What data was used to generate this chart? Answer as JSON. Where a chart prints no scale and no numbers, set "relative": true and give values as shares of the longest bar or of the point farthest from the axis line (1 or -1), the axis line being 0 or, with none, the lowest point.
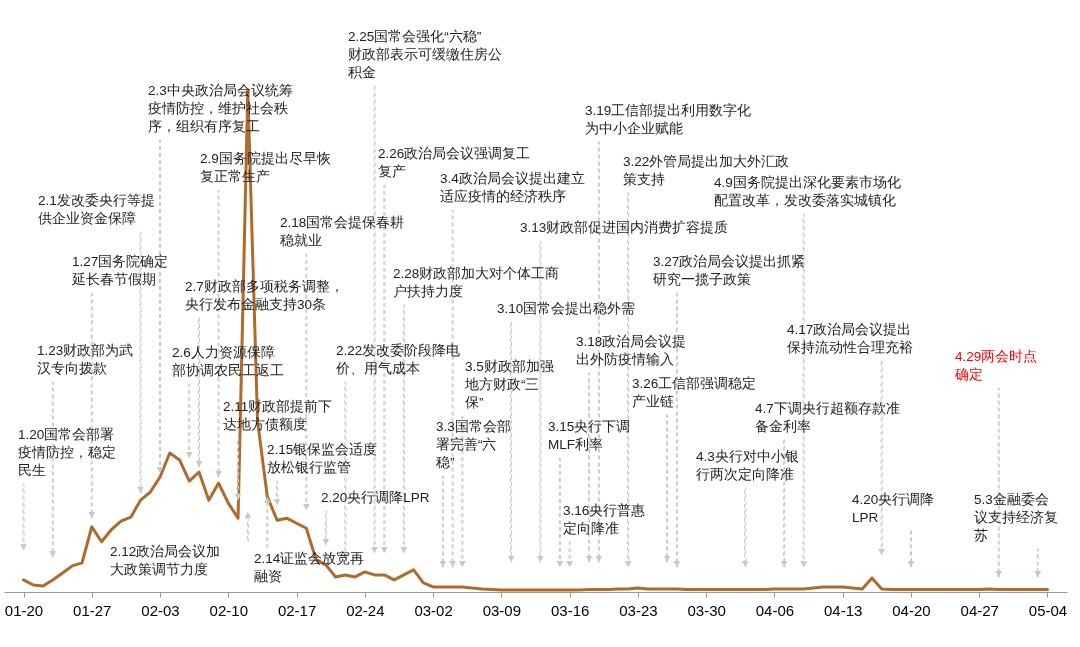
{
  "chart_data": {
    "type": "line",
    "relative": true,
    "color": "#b06a2c",
    "x": [
      "--01-20",
      "--01-21",
      "--01-22",
      "--01-23",
      "--01-24",
      "--01-25",
      "--01-26",
      "--01-27",
      "--01-28",
      "--01-29",
      "--01-30",
      "--01-31",
      "--02-01",
      "--02-02",
      "--02-03",
      "--02-04",
      "--02-05",
      "--02-06",
      "--02-07",
      "--02-08",
      "--02-09",
      "--02-10",
      "--02-11",
      "--02-12",
      "--02-13",
      "--02-14",
      "--02-15",
      "--02-16",
      "--02-17",
      "--02-18",
      "--02-19",
      "--02-20",
      "--02-21",
      "--02-22",
      "--02-23",
      "--02-24",
      "--02-25",
      "--02-26",
      "--02-27",
      "--02-28",
      "--02-29",
      "--03-01",
      "--03-02",
      "--03-03",
      "--03-04",
      "--03-05",
      "--03-06",
      "--03-07",
      "--03-08",
      "--03-09",
      "--03-10",
      "--03-11",
      "--03-12",
      "--03-13",
      "--03-14",
      "--03-15",
      "--03-16",
      "--03-17",
      "--03-18",
      "--03-19",
      "--03-20",
      "--03-21",
      "--03-22",
      "--03-23",
      "--03-24",
      "--03-25",
      "--03-26",
      "--03-27",
      "--03-28",
      "--03-29",
      "--03-30",
      "--03-31",
      "--04-01",
      "--04-02",
      "--04-03",
      "--04-04",
      "--04-05",
      "--04-06",
      "--04-07",
      "--04-08",
      "--04-09",
      "--04-10",
      "--04-11",
      "--04-12",
      "--04-13",
      "--04-14",
      "--04-15",
      "--04-16",
      "--04-17",
      "--04-18",
      "--04-19",
      "--04-20",
      "--04-21",
      "--04-22",
      "--04-23",
      "--04-24",
      "--04-25",
      "--04-26",
      "--04-27",
      "--04-28",
      "--04-29",
      "--04-30",
      "--05-01",
      "--05-02",
      "--05-03",
      "--05-04"
    ],
    "values": [
      0.024,
      0.014,
      0.012,
      0.024,
      0.038,
      0.052,
      0.058,
      0.13,
      0.1,
      0.124,
      0.141,
      0.149,
      0.183,
      0.199,
      0.229,
      0.277,
      0.263,
      0.221,
      0.239,
      0.183,
      0.217,
      0.177,
      0.147,
      1.0,
      0.34,
      0.19,
      0.143,
      0.147,
      0.137,
      0.127,
      0.064,
      0.054,
      0.03,
      0.034,
      0.03,
      0.04,
      0.034,
      0.034,
      0.024,
      0.034,
      0.044,
      0.018,
      0.01,
      0.01,
      0.01,
      0.01,
      0.008,
      0.006,
      0.005,
      0.004,
      0.004,
      0.004,
      0.004,
      0.004,
      0.004,
      0.004,
      0.004,
      0.004,
      0.005,
      0.005,
      0.005,
      0.006,
      0.006,
      0.008,
      0.006,
      0.006,
      0.006,
      0.006,
      0.005,
      0.005,
      0.005,
      0.005,
      0.005,
      0.005,
      0.005,
      0.005,
      0.005,
      0.006,
      0.006,
      0.006,
      0.006,
      0.008,
      0.01,
      0.01,
      0.01,
      0.008,
      0.006,
      0.028,
      0.006,
      0.005,
      0.005,
      0.005,
      0.005,
      0.005,
      0.005,
      0.005,
      0.005,
      0.005,
      0.005,
      0.006,
      0.005,
      0.005,
      0.005,
      0.005,
      0.005,
      0.005
    ],
    "xlim": [
      "--01-18",
      "--05-06"
    ],
    "xticks": [
      {
        "value": "--01-20",
        "label": "01-20"
      },
      {
        "value": "--01-27",
        "label": "01-27"
      },
      {
        "value": "--02-03",
        "label": "02-03"
      },
      {
        "value": "--02-10",
        "label": "02-10"
      },
      {
        "value": "--02-17",
        "label": "02-17"
      },
      {
        "value": "--02-24",
        "label": "02-24"
      },
      {
        "value": "--03-02",
        "label": "03-02"
      },
      {
        "value": "--03-09",
        "label": "03-09"
      },
      {
        "value": "--03-16",
        "label": "03-16"
      },
      {
        "value": "--03-23",
        "label": "03-23"
      },
      {
        "value": "--03-30",
        "label": "03-30"
      },
      {
        "value": "--04-06",
        "label": "04-06"
      },
      {
        "value": "--04-13",
        "label": "04-13"
      },
      {
        "value": "--04-20",
        "label": "04-20"
      },
      {
        "value": "--04-27",
        "label": "04-27"
      },
      {
        "value": "--05-04",
        "label": "05-04"
      }
    ],
    "annotations": [
      "1.20国常会部署疫情防控，稳定民生",
      "1.23财政部为武汉专向拨款",
      "1.27国务院确定延长春节假期",
      "2.1发改委央行等提供企业资金保障",
      "2.3中央政治局会议统筹疫情防控，维护社会秩序，组织有序复工",
      "2.6人力资源保障部协调农民工返工",
      "2.7财政部多项税务调整，央行发布金融支持30条",
      "2.9国务院提出尽早恢复正常生产",
      "2.11财政部提前下达地方债额度",
      "2.12政治局会议加大政策调节力度",
      "2.14证监会放宽再融资",
      "2.15银保监会适度放松银行监管",
      "2.18国常会提保春耕稳就业",
      "2.20央行调降LPR",
      "2.22发改委阶段降电价、用气成本",
      "2.25国常会强化“六稳”财政部表示可缓缴住房公积金",
      "2.26政治局会议强调复工复产",
      "2.28财政部加大对个体工商户扶持力度",
      "3.3国常会部署完善“六稳”",
      "3.4政治局会议提出建立适应疫情的经济秩序",
      "3.5财政部加强地方财政“三保”",
      "3.10国常会提出稳外需",
      "3.13财政部促进国内消费扩容提质",
      "3.15央行下调MLF利率",
      "3.16央行普惠定向降准",
      "3.18政治局会议提出外防疫情输入",
      "3.19工信部提出利用数字化为中小企业赋能",
      "3.22外管局提出加大外汇政策支持",
      "3.26工信部强调稳定产业链",
      "3.27政治局会议提出抓紧研究一揽子政策",
      "4.3央行对中小银行两次定向降准",
      "4.7下调央行超额存款准备金利率",
      "4.9国务院提出深化要素市场化配置改革，发改委落实城镇化",
      "4.17政治局会议提出保持流动性合理充裕",
      "4.20央行调降LPR",
      "4.29两会时点确定",
      "5.3金融委会议支持经济复苏"
    ]
  }
}
